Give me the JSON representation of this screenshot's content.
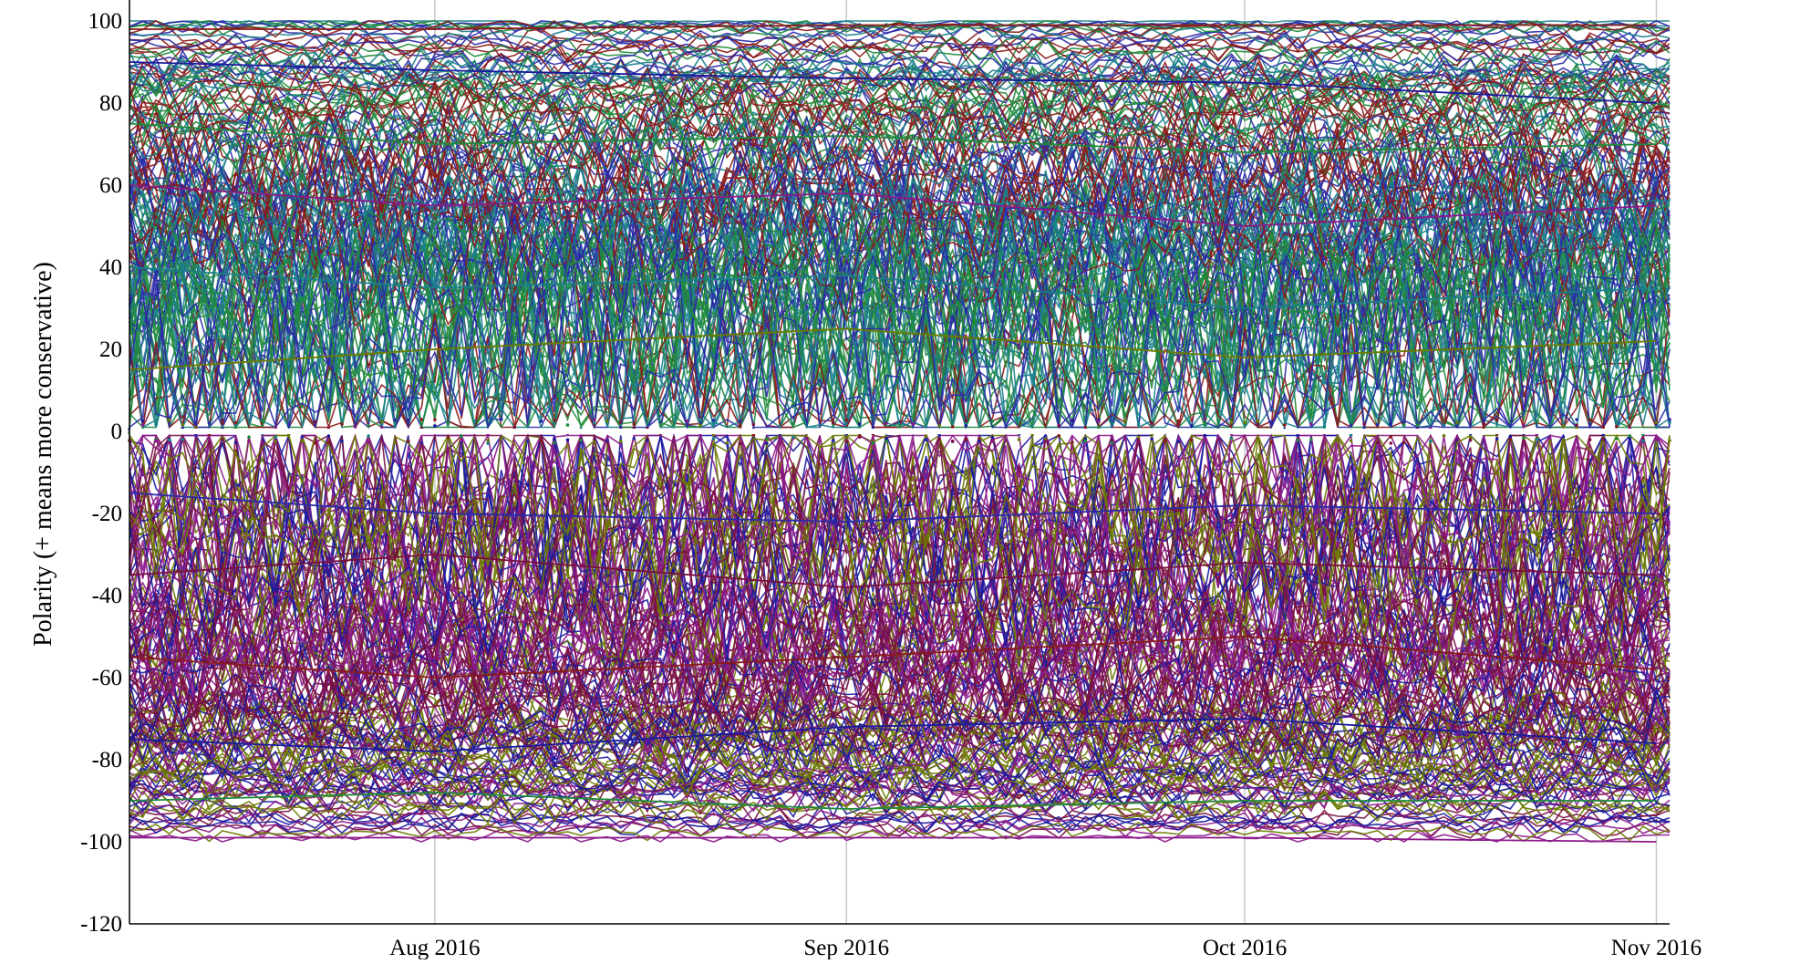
{
  "chart_data": {
    "type": "line",
    "title": "",
    "xlabel": "",
    "ylabel": "Polarity (+ means more conservative)",
    "x_range": [
      "2016-07-09",
      "2016-11-02"
    ],
    "ylim": [
      -120,
      100
    ],
    "y_ticks": [
      100,
      80,
      60,
      40,
      20,
      0,
      -20,
      -40,
      -60,
      -80,
      -100,
      -120
    ],
    "x_ticks": [
      {
        "date": "2016-08-01",
        "label": "Aug 2016"
      },
      {
        "date": "2016-09-01",
        "label": "Sep 2016"
      },
      {
        "date": "2016-10-01",
        "label": "Oct 2016"
      },
      {
        "date": "2016-11-01",
        "label": "Nov 2016"
      }
    ],
    "grid": {
      "vertical": true,
      "horizontal": false
    },
    "legend": "none",
    "series_count_estimate": 320,
    "series_colors": [
      "#8b1a1a",
      "#1a1a9e",
      "#1f8a3a",
      "#8b1a8b",
      "#1a7f8b",
      "#6b7a00",
      "#2a2aa8",
      "#7a0f3f"
    ],
    "series_pattern": "many overlapping daily polarity series per outlet; series with |value| near 100 are nearly flat, series near 0 oscillate strongly between roughly 0 and 50 (positive) or 0 and -50 (negative); gaps near zero shown as small dots",
    "representative_series": [
      {
        "values_by_month": {
          "2016-07-09": 98,
          "2016-08-01": 98,
          "2016-09-01": 99,
          "2016-10-01": 99,
          "2016-11-01": 99
        }
      },
      {
        "values_by_month": {
          "2016-07-09": 90,
          "2016-08-01": 88,
          "2016-09-01": 86,
          "2016-10-01": 85,
          "2016-11-01": 80
        }
      },
      {
        "values_by_month": {
          "2016-07-09": 75,
          "2016-08-01": 70,
          "2016-09-01": 72,
          "2016-10-01": 68,
          "2016-11-01": 70
        }
      },
      {
        "values_by_month": {
          "2016-07-09": 60,
          "2016-08-01": 55,
          "2016-09-01": 58,
          "2016-10-01": 50,
          "2016-11-01": 55
        }
      },
      {
        "values_by_month": {
          "2016-07-09": 40,
          "2016-08-01": 35,
          "2016-09-01": 38,
          "2016-10-01": 30,
          "2016-11-01": 35
        }
      },
      {
        "values_by_month": {
          "2016-07-09": 15,
          "2016-08-01": 20,
          "2016-09-01": 25,
          "2016-10-01": 18,
          "2016-11-01": 22
        }
      },
      {
        "values_by_month": {
          "2016-07-09": -15,
          "2016-08-01": -20,
          "2016-09-01": -22,
          "2016-10-01": -18,
          "2016-11-01": -20
        }
      },
      {
        "values_by_month": {
          "2016-07-09": -35,
          "2016-08-01": -30,
          "2016-09-01": -38,
          "2016-10-01": -32,
          "2016-11-01": -35
        }
      },
      {
        "values_by_month": {
          "2016-07-09": -55,
          "2016-08-01": -60,
          "2016-09-01": -55,
          "2016-10-01": -50,
          "2016-11-01": -58
        }
      },
      {
        "values_by_month": {
          "2016-07-09": -75,
          "2016-08-01": -78,
          "2016-09-01": -72,
          "2016-10-01": -70,
          "2016-11-01": -76
        }
      },
      {
        "values_by_month": {
          "2016-07-09": -90,
          "2016-08-01": -88,
          "2016-09-01": -92,
          "2016-10-01": -90,
          "2016-11-01": -90
        }
      },
      {
        "values_by_month": {
          "2016-07-09": -99,
          "2016-08-01": -99,
          "2016-09-01": -99,
          "2016-10-01": -99,
          "2016-11-01": -100
        }
      }
    ]
  }
}
